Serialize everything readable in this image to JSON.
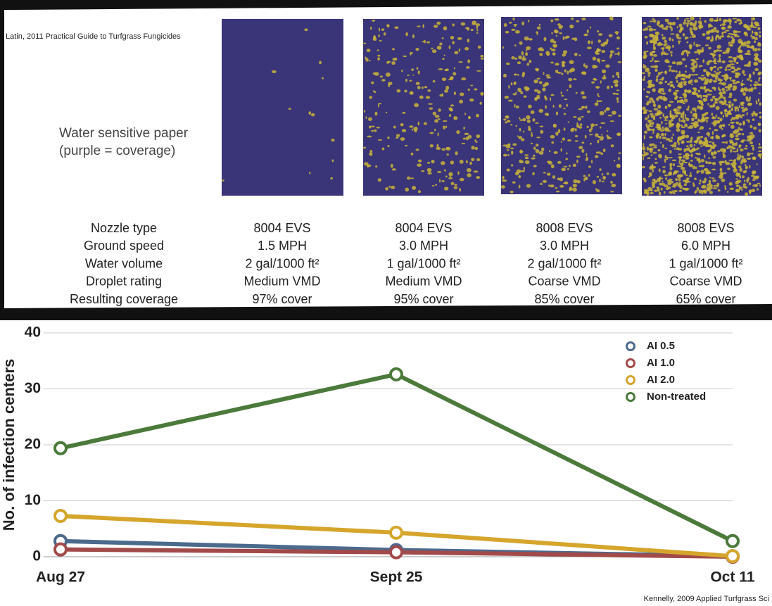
{
  "panel": {
    "citation": "Latin, 2011 Practical Guide to Turfgrass Fungicides",
    "label_lines": [
      "Water sensitive paper",
      "(purple = coverage)"
    ],
    "table": {
      "rows": [
        [
          "Nozzle type",
          "8004 EVS",
          "8004 EVS",
          "8008 EVS",
          "8008 EVS"
        ],
        [
          "Ground speed",
          "1.5 MPH",
          "3.0 MPH",
          "3.0 MPH",
          "6.0 MPH"
        ],
        [
          "Water volume",
          "2 gal/1000 ft²",
          "1 gal/1000 ft²",
          "2 gal/1000 ft²",
          "1 gal/1000 ft²"
        ],
        [
          "Droplet rating",
          "Medium VMD",
          "Medium VMD",
          "Coarse VMD",
          "Coarse VMD"
        ],
        [
          "Resulting coverage",
          "97% cover",
          "95% cover",
          "85% cover",
          "65% cover"
        ]
      ]
    }
  },
  "chart_data": {
    "type": "line",
    "y_label": "No. of infection centers",
    "categories": [
      "Aug 27",
      "Sept 25",
      "Oct 11"
    ],
    "series": [
      {
        "name": "AI 0.5",
        "color": "#4b6a8c",
        "values": [
          2.8,
          1.2,
          0.1
        ]
      },
      {
        "name": "AI 1.0",
        "color": "#a24a4a",
        "values": [
          1.3,
          0.8,
          0
        ]
      },
      {
        "name": "AI 2.0",
        "color": "#d5a52c",
        "values": [
          7.3,
          4.3,
          0.1
        ]
      },
      {
        "name": "Non-treated",
        "color": "#4b7a3b",
        "values": [
          19.4,
          32.6,
          2.8
        ]
      }
    ],
    "ylim": [
      0,
      40
    ],
    "yticks": [
      0,
      10,
      20,
      30,
      40
    ],
    "grid": true,
    "legend": "top-right",
    "source": "Kennelly, 2009 Applied Turfgrass Sci"
  }
}
